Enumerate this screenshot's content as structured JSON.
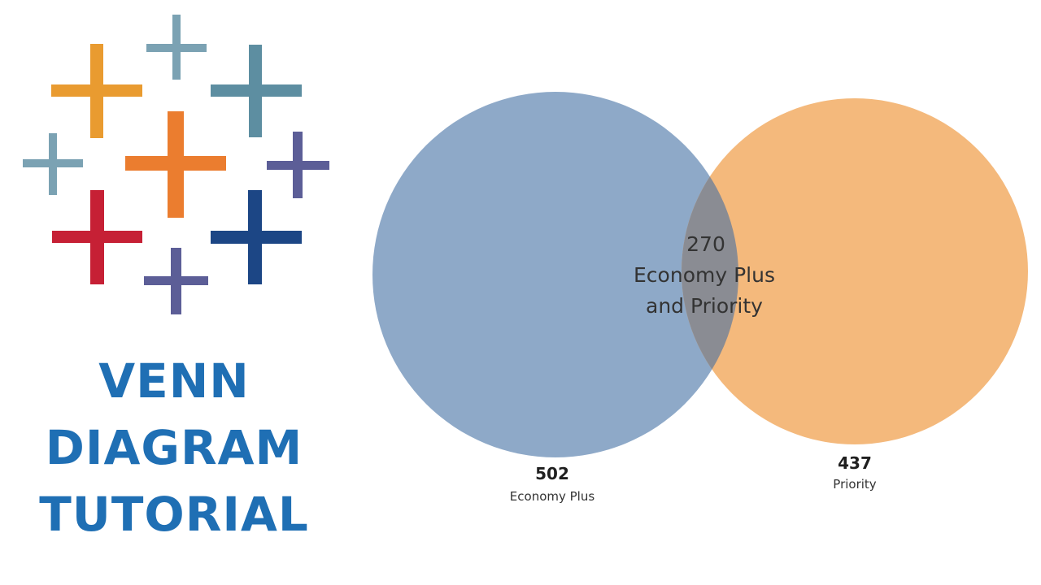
{
  "logo": {
    "name": "tableau-plus-logo",
    "colors": {
      "teal": "#7ba2b3",
      "orange": "#eb7d2f",
      "amber": "#e99b30",
      "steel": "#5d8ea1",
      "red": "#c62035",
      "navy": "#1c4685",
      "purple": "#5c5e97"
    }
  },
  "title": {
    "lines": [
      "VENN",
      "DIAGRAM",
      "TUTORIAL"
    ],
    "color": "#1f6fb4"
  },
  "chart_data": {
    "type": "venn",
    "sets": [
      {
        "name": "Economy Plus",
        "value": 502,
        "color": "#8ea9c8"
      },
      {
        "name": "Priority",
        "value": 437,
        "color": "#f4b97c"
      }
    ],
    "intersection": {
      "value": 270,
      "label_lines": [
        "Economy Plus",
        "and Priority"
      ],
      "color": "#8a8c93"
    }
  }
}
